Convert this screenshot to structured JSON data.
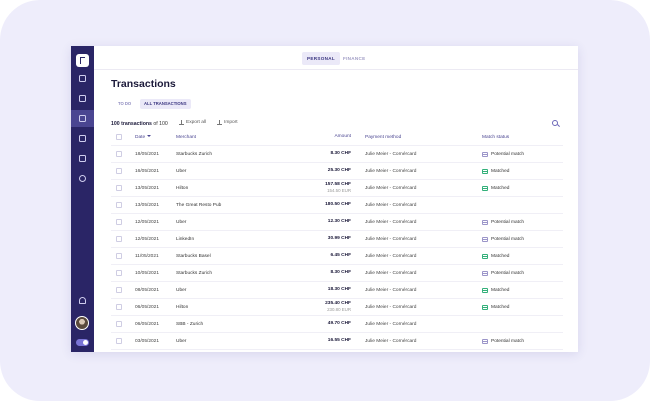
{
  "topbar": {
    "personal": "PERSONAL",
    "finance": "FINANCE"
  },
  "page": {
    "title": "Transactions"
  },
  "tabs": {
    "todo": "TO DO",
    "all": "ALL TRANSACTIONS"
  },
  "toolbar": {
    "count_bold": "100 transactions",
    "count_rest": " of 100",
    "export_label": "Export all",
    "import_label": "Import"
  },
  "table": {
    "headers": {
      "date": "Date",
      "merchant": "Merchant",
      "amount": "Amount",
      "payment": "Payment method",
      "match": "Match status"
    },
    "rows": [
      {
        "date": "18/05/2021",
        "merchant": "Starbucks Zurich",
        "amount": "8.30  CHF",
        "sub": "",
        "payment": "Julie Meier - Cornércard",
        "match": "Potential match",
        "status": "potential"
      },
      {
        "date": "16/05/2021",
        "merchant": "Uber",
        "amount": "25.30  CHF",
        "sub": "",
        "payment": "Julie Meier - Cornércard",
        "match": "Matched",
        "status": "matched"
      },
      {
        "date": "13/05/2021",
        "merchant": "Hilton",
        "amount": "157.58 CHF",
        "sub": "154.50 EUR",
        "payment": "Julie Meier - Cornércard",
        "match": "Matched",
        "status": "matched"
      },
      {
        "date": "13/05/2021",
        "merchant": "The Great Resto Pub",
        "amount": "180.50  CHF",
        "sub": "",
        "payment": "Julie Meier - Cornércard",
        "match": "",
        "status": ""
      },
      {
        "date": "12/05/2021",
        "merchant": "Uber",
        "amount": "12.30  CHF",
        "sub": "",
        "payment": "Julie Meier - Cornércard",
        "match": "Potential match",
        "status": "potential"
      },
      {
        "date": "12/05/2021",
        "merchant": "LinkedIn",
        "amount": "30.99  CHF",
        "sub": "",
        "payment": "Julie Meier - Cornércard",
        "match": "Potential match",
        "status": "potential"
      },
      {
        "date": "11/05/2021",
        "merchant": "Starbucks Basel",
        "amount": "6.45  CHF",
        "sub": "",
        "payment": "Julie Meier - Cornércard",
        "match": "Matched",
        "status": "matched"
      },
      {
        "date": "10/05/2021",
        "merchant": "Starbucks Zurich",
        "amount": "8.30  CHF",
        "sub": "",
        "payment": "Julie Meier - Cornércard",
        "match": "Potential match",
        "status": "potential"
      },
      {
        "date": "08/05/2021",
        "merchant": "Uber",
        "amount": "18.30  CHF",
        "sub": "",
        "payment": "Julie Meier - Cornércard",
        "match": "Matched",
        "status": "matched"
      },
      {
        "date": "06/05/2021",
        "merchant": "Hilton",
        "amount": "235.40 CHF",
        "sub": "230.80 EUR",
        "payment": "Julie Meier - Cornércard",
        "match": "Matched",
        "status": "matched"
      },
      {
        "date": "06/05/2021",
        "merchant": "SBB - Zurich",
        "amount": "49.70  CHF",
        "sub": "",
        "payment": "Julie Meier - Cornércard",
        "match": "",
        "status": ""
      },
      {
        "date": "03/05/2021",
        "merchant": "Uber",
        "amount": "16.55  CHF",
        "sub": "",
        "payment": "Julie Meier - Cornércard",
        "match": "Potential match",
        "status": "potential"
      }
    ]
  },
  "colors": {
    "sidebar": "#2a2566",
    "accent": "#4a4591",
    "matched": "#33b07a",
    "potential": "#9b95c9"
  }
}
